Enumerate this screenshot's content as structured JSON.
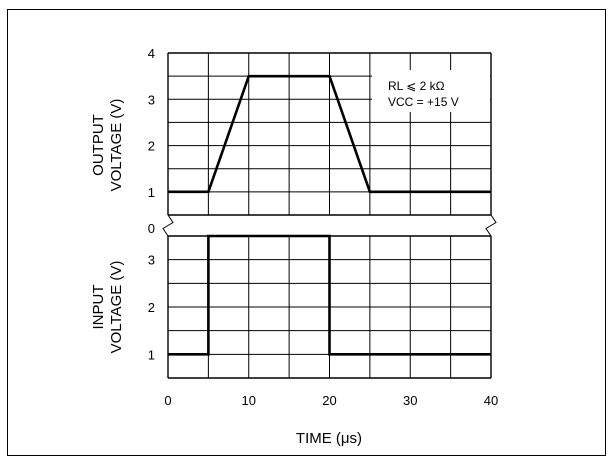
{
  "chart_data": {
    "type": "line",
    "xlabel": "TIME (μs)",
    "x_ticks": [
      0,
      10,
      20,
      30,
      40
    ],
    "xlim": [
      0,
      40
    ],
    "panels": [
      {
        "id": "output",
        "ylabel_lines": [
          "OUTPUT",
          "VOLTAGE (V)"
        ],
        "y_ticks": [
          1,
          2,
          3,
          4
        ],
        "ylim": [
          0.5,
          4
        ],
        "series": [
          {
            "x": [
              0,
              5,
              10,
              20,
              25,
              40
            ],
            "y": [
              1,
              1,
              3.5,
              3.5,
              1,
              1
            ]
          }
        ],
        "annotation_lines": [
          "RL ⩽ 2 kΩ",
          "VCC = +15 V"
        ]
      },
      {
        "id": "input",
        "ylabel_lines": [
          "INPUT",
          "VOLTAGE (V)"
        ],
        "y_ticks": [
          1,
          2,
          3
        ],
        "ylim": [
          0.5,
          3.5
        ],
        "series": [
          {
            "x": [
              0,
              5,
              5,
              20,
              20,
              40
            ],
            "y": [
              1,
              1,
              3.5,
              3.5,
              1,
              1
            ]
          }
        ]
      }
    ],
    "axis_break_label": "0",
    "grid": true
  }
}
